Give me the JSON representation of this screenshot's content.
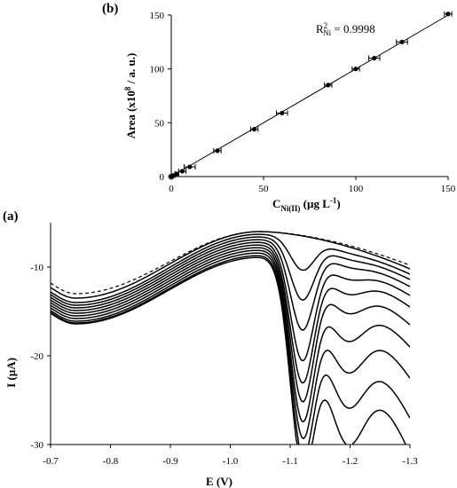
{
  "chart_data": [
    {
      "panel": "(b)",
      "type": "scatter",
      "xlabel": {
        "main": "C",
        "sub": "Ni(II)",
        "rest": " (µg L",
        "sup": "-1",
        "end": ")"
      },
      "ylabel": {
        "pre": "Area (x10",
        "sup": "8",
        "post": " / a. u.)"
      },
      "xlim": [
        0,
        150
      ],
      "ylim": [
        0,
        150
      ],
      "xticks": [
        "0",
        "50",
        "100",
        "150"
      ],
      "yticks": [
        "0",
        "50",
        "100",
        "150"
      ],
      "annotation": {
        "pre": "R",
        "sup": "2",
        "sub": "Ni",
        "post": " = 0.9998"
      },
      "points": [
        {
          "x": 0,
          "y": 0,
          "err": 1
        },
        {
          "x": 1,
          "y": 1,
          "err": 1
        },
        {
          "x": 3,
          "y": 2.5,
          "err": 1
        },
        {
          "x": 6,
          "y": 5,
          "err": 2
        },
        {
          "x": 10,
          "y": 9,
          "err": 3
        },
        {
          "x": 25,
          "y": 24,
          "err": 2
        },
        {
          "x": 45,
          "y": 44,
          "err": 2
        },
        {
          "x": 60,
          "y": 59,
          "err": 3
        },
        {
          "x": 85,
          "y": 85,
          "err": 2
        },
        {
          "x": 100,
          "y": 100,
          "err": 2
        },
        {
          "x": 110,
          "y": 110,
          "err": 3
        },
        {
          "x": 125,
          "y": 125,
          "err": 3
        },
        {
          "x": 150,
          "y": 151,
          "err": 2
        }
      ],
      "fit": {
        "slope": 1.0,
        "intercept": 0.0
      },
      "grid": false
    },
    {
      "panel": "(a)",
      "type": "line",
      "xlabel": "E (V)",
      "ylabel": "I (µA)",
      "xlim": [
        -0.7,
        -1.3
      ],
      "ylim": [
        -30,
        -5
      ],
      "xticks": [
        "-0.7",
        "-0.8",
        "-0.9",
        "-1.0",
        "-1.1",
        "-1.2",
        "-1.3"
      ],
      "yticks": [
        "-10",
        "-20",
        "-30"
      ],
      "x_reversed": true,
      "grid": false,
      "curves": [
        {
          "dashed": true,
          "min1": -13.0,
          "emin1": -0.742,
          "cross": -0.855,
          "top": -6.0,
          "etop": -1.05,
          "pk": 0.0,
          "pkE": -1.12,
          "pk2": 0.0,
          "pk2E": -1.19,
          "end": -9.8
        },
        {
          "dashed": false,
          "min1": -13.5,
          "emin1": -0.742,
          "cross": -0.86,
          "top": -6.0,
          "etop": -1.05,
          "pk": 0.0,
          "pkE": -1.12,
          "pk2": 0.0,
          "pk2E": -1.19,
          "end": -10.2
        },
        {
          "dashed": false,
          "min1": -14.0,
          "emin1": -0.742,
          "cross": -0.866,
          "top": -6.3,
          "etop": -1.05,
          "pk": 3.5,
          "pkE": -1.12,
          "pk2": 0.3,
          "pk2E": -1.19,
          "end": -10.8
        },
        {
          "dashed": false,
          "min1": -14.3,
          "emin1": -0.742,
          "cross": -0.872,
          "top": -6.6,
          "etop": -1.05,
          "pk": 6.5,
          "pkE": -1.12,
          "pk2": 0.6,
          "pk2E": -1.19,
          "end": -11.4
        },
        {
          "dashed": false,
          "min1": -14.6,
          "emin1": -0.742,
          "cross": -0.878,
          "top": -6.9,
          "etop": -1.05,
          "pk": 9.5,
          "pkE": -1.12,
          "pk2": 1.0,
          "pk2E": -1.19,
          "end": -12.2
        },
        {
          "dashed": false,
          "min1": -14.9,
          "emin1": -0.742,
          "cross": -0.884,
          "top": -7.2,
          "etop": -1.05,
          "pk": 12.5,
          "pkE": -1.12,
          "pk2": 1.8,
          "pk2E": -1.19,
          "end": -13.2
        },
        {
          "dashed": false,
          "min1": -15.2,
          "emin1": -0.742,
          "cross": -0.89,
          "top": -7.5,
          "etop": -1.05,
          "pk": 14.5,
          "pkE": -1.12,
          "pk2": 2.8,
          "pk2E": -1.19,
          "end": -14.5
        },
        {
          "dashed": false,
          "min1": -15.5,
          "emin1": -0.742,
          "cross": -0.896,
          "top": -7.8,
          "etop": -1.05,
          "pk": 16.0,
          "pkE": -1.12,
          "pk2": 4.0,
          "pk2E": -1.19,
          "end": -16.5
        },
        {
          "dashed": false,
          "min1": -15.8,
          "emin1": -0.742,
          "cross": -0.902,
          "top": -8.1,
          "etop": -1.05,
          "pk": 17.5,
          "pkE": -1.12,
          "pk2": 6.0,
          "pk2E": -1.19,
          "end": -19.0
        },
        {
          "dashed": false,
          "min1": -16.1,
          "emin1": -0.742,
          "cross": -0.908,
          "top": -8.4,
          "etop": -1.05,
          "pk": 18.5,
          "pkE": -1.12,
          "pk2": 8.0,
          "pk2E": -1.19,
          "end": -22.5
        },
        {
          "dashed": false,
          "min1": -16.3,
          "emin1": -0.742,
          "cross": -0.912,
          "top": -8.7,
          "etop": -1.05,
          "pk": 19.5,
          "pkE": -1.12,
          "pk2": 10.0,
          "pk2E": -1.19,
          "end": -27.0
        },
        {
          "dashed": false,
          "min1": -16.4,
          "emin1": -0.742,
          "cross": -0.915,
          "top": -8.9,
          "etop": -1.05,
          "pk": 20.5,
          "pkE": -1.12,
          "pk2": 12.5,
          "pk2E": -1.19,
          "end": -31.0
        }
      ]
    }
  ]
}
